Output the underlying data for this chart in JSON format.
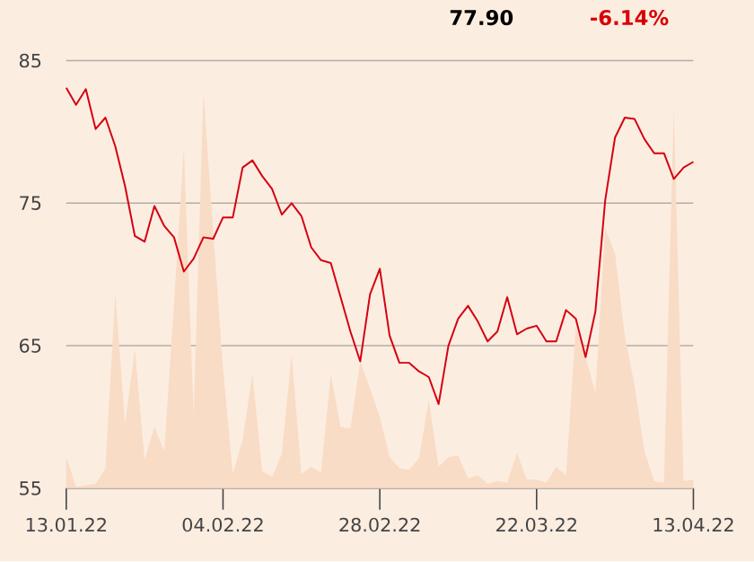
{
  "chart_data": {
    "type": "line",
    "annotations": [
      "77.90",
      "-6.14%"
    ],
    "categories": [
      "13.01.22",
      null,
      null,
      null,
      null,
      null,
      null,
      null,
      null,
      null,
      null,
      null,
      null,
      null,
      null,
      null,
      "04.02.22",
      null,
      null,
      null,
      null,
      null,
      null,
      null,
      null,
      null,
      null,
      null,
      null,
      null,
      null,
      null,
      "28.02.22",
      null,
      null,
      null,
      null,
      null,
      null,
      null,
      null,
      null,
      null,
      null,
      null,
      null,
      null,
      null,
      "22.03.22",
      null,
      null,
      null,
      null,
      null,
      null,
      null,
      null,
      null,
      null,
      null,
      null,
      null,
      null,
      null,
      "13.04.22"
    ],
    "series": [
      {
        "type": "area",
        "color": "#f8dcc6",
        "values": [
          57.2,
          55.1,
          55.2,
          55.3,
          56.4,
          68.7,
          59.5,
          64.7,
          57.0,
          59.3,
          57.6,
          68,
          78.9,
          60.1,
          82.8,
          73,
          63.4,
          56.0,
          58.4,
          63.0,
          56.2,
          55.8,
          57.4,
          64.4,
          56.0,
          56.5,
          56.1,
          63.0,
          59.3,
          59.2,
          63.9,
          62,
          60.0,
          57.2,
          56.4,
          56.3,
          57.1,
          61.2,
          56.5,
          57.2,
          57.3,
          55.7,
          55.9,
          55.3,
          55.5,
          55.4,
          57.5,
          55.6,
          55.6,
          55.4,
          56.5,
          55.9,
          66.3,
          64.2,
          61.7,
          73.2,
          71.5,
          65.7,
          62.2,
          57.6,
          55.5,
          55.4,
          81.7,
          55.5,
          55.6
        ]
      },
      {
        "color": "#d40010",
        "values": [
          83.1,
          81.9,
          83.0,
          80.2,
          81.0,
          79.0,
          76.2,
          72.7,
          72.3,
          74.8,
          73.4,
          72.6,
          70.2,
          71.1,
          72.6,
          72.5,
          74.0,
          74.0,
          77.5,
          78.0,
          76.9,
          76.0,
          74.2,
          75.0,
          74.1,
          71.9,
          71.0,
          70.8,
          68.4,
          66.0,
          63.9,
          68.6,
          70.4,
          65.7,
          63.8,
          63.8,
          63.2,
          62.8,
          60.9,
          65.0,
          66.9,
          67.8,
          66.7,
          65.3,
          66.0,
          68.4,
          65.8,
          66.2,
          66.4,
          65.3,
          65.3,
          67.5,
          66.9,
          64.2,
          67.4,
          75.2,
          79.6,
          81.0,
          80.9,
          79.5,
          78.5,
          78.5,
          76.7,
          77.5,
          77.9
        ]
      }
    ],
    "ylim": [
      55,
      85
    ],
    "yticks": [
      55,
      65,
      75,
      85
    ],
    "grid": "y"
  }
}
